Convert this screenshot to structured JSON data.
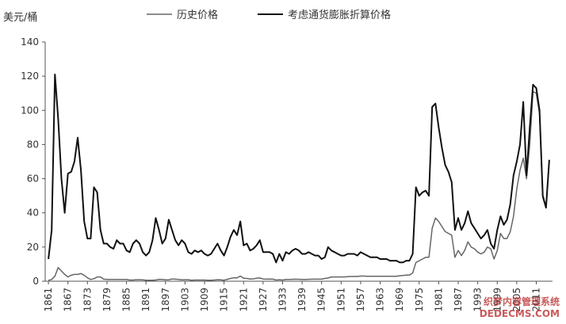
{
  "chart_data": {
    "type": "line",
    "ylabel": "美元/桶",
    "x": [
      1861,
      1862,
      1863,
      1864,
      1865,
      1866,
      1867,
      1868,
      1869,
      1870,
      1871,
      1872,
      1873,
      1874,
      1875,
      1876,
      1877,
      1878,
      1879,
      1880,
      1881,
      1882,
      1883,
      1884,
      1885,
      1886,
      1887,
      1888,
      1889,
      1890,
      1891,
      1892,
      1893,
      1894,
      1895,
      1896,
      1897,
      1898,
      1899,
      1900,
      1901,
      1902,
      1903,
      1904,
      1905,
      1906,
      1907,
      1908,
      1909,
      1910,
      1911,
      1912,
      1913,
      1914,
      1915,
      1916,
      1917,
      1918,
      1919,
      1920,
      1921,
      1922,
      1923,
      1924,
      1925,
      1926,
      1927,
      1928,
      1929,
      1930,
      1931,
      1932,
      1933,
      1934,
      1935,
      1936,
      1937,
      1938,
      1939,
      1940,
      1941,
      1942,
      1943,
      1944,
      1945,
      1946,
      1947,
      1948,
      1949,
      1950,
      1951,
      1952,
      1953,
      1954,
      1955,
      1956,
      1957,
      1958,
      1959,
      1960,
      1961,
      1962,
      1963,
      1964,
      1965,
      1966,
      1967,
      1968,
      1969,
      1970,
      1971,
      1972,
      1973,
      1974,
      1975,
      1976,
      1977,
      1978,
      1979,
      1980,
      1981,
      1982,
      1983,
      1984,
      1985,
      1986,
      1987,
      1988,
      1989,
      1990,
      1991,
      1992,
      1993,
      1994,
      1995,
      1996,
      1997,
      1998,
      1999,
      2000,
      2001,
      2002,
      2003,
      2004,
      2005,
      2006,
      2007,
      2008,
      2009,
      2010,
      2011,
      2012,
      2013,
      2014,
      2015
    ],
    "series": [
      {
        "name": "历史价格",
        "color": "#666666",
        "width": 1.5,
        "values": [
          0.5,
          1,
          3,
          8,
          6,
          4,
          2.5,
          3.5,
          4,
          4,
          4.5,
          3.5,
          2,
          1,
          1.5,
          2.5,
          2.5,
          1.2,
          1,
          1,
          1,
          1,
          1,
          1,
          1,
          0.7,
          0.7,
          0.9,
          0.9,
          0.8,
          0.6,
          0.6,
          0.6,
          0.7,
          1.1,
          1,
          0.8,
          0.9,
          1.3,
          1.2,
          1,
          0.8,
          0.9,
          0.9,
          0.6,
          0.7,
          0.7,
          0.7,
          0.7,
          0.6,
          0.6,
          0.7,
          0.9,
          0.8,
          0.6,
          1.1,
          1.6,
          2,
          2,
          3,
          1.7,
          1.6,
          1.3,
          1.4,
          1.7,
          1.9,
          1.3,
          1.2,
          1.3,
          1.2,
          0.7,
          0.9,
          0.7,
          1,
          1,
          1.1,
          1.2,
          1.1,
          1,
          1,
          1.1,
          1.2,
          1.2,
          1.2,
          1.2,
          1.6,
          1.9,
          2.5,
          2.5,
          2.5,
          2.5,
          2.5,
          2.7,
          2.8,
          2.8,
          2.8,
          3,
          3,
          2.9,
          2.9,
          2.9,
          2.9,
          2.9,
          2.9,
          2.9,
          2.9,
          2.9,
          2.9,
          3.2,
          3.4,
          3.6,
          3.6,
          4.8,
          11,
          12,
          13,
          14,
          14,
          31,
          37,
          35,
          32,
          29,
          28,
          27,
          14,
          18,
          15,
          18,
          23,
          20,
          19,
          17,
          16,
          17,
          20,
          19,
          13,
          18,
          28,
          25,
          25,
          29,
          38,
          54,
          65,
          72,
          60,
          80,
          111,
          110,
          98,
          49,
          43,
          71
        ]
      },
      {
        "name": "考虑通货膨胀折算价格",
        "color": "#111111",
        "width": 2,
        "values": [
          13,
          30,
          121,
          95,
          60,
          40,
          63,
          64,
          70,
          84,
          65,
          35,
          25,
          25,
          55,
          52,
          30,
          22,
          22,
          20,
          19,
          24,
          22,
          22,
          18,
          17,
          22,
          24,
          22,
          17,
          15,
          17,
          24,
          37,
          30,
          22,
          25,
          36,
          30,
          24,
          21,
          24,
          22,
          17,
          16,
          18,
          17,
          18,
          16,
          15,
          16,
          19,
          22,
          18,
          15,
          20,
          26,
          30,
          27,
          35,
          21,
          22,
          18,
          19,
          21,
          24,
          17,
          17,
          17,
          16,
          11,
          16,
          12,
          17,
          16,
          18,
          19,
          18,
          16,
          16,
          17,
          16,
          15,
          15,
          13,
          14,
          20,
          18,
          17,
          16,
          15,
          15,
          16,
          16,
          16,
          15,
          17,
          16,
          15,
          14,
          14,
          14,
          13,
          13,
          13,
          12,
          12,
          12,
          11,
          11,
          12,
          12,
          16,
          55,
          50,
          52,
          53,
          50,
          102,
          104,
          90,
          78,
          68,
          64,
          58,
          30,
          37,
          30,
          34,
          41,
          34,
          31,
          28,
          25,
          27,
          30,
          22,
          19,
          30,
          38,
          33,
          36,
          45,
          62,
          70,
          80,
          105,
          62,
          90,
          115,
          113,
          100,
          50,
          43,
          71
        ]
      }
    ],
    "xlim": [
      1860,
      2016
    ],
    "xticks": [
      1861,
      1867,
      1873,
      1879,
      1885,
      1891,
      1897,
      1903,
      1909,
      1915,
      1921,
      1927,
      1933,
      1939,
      1945,
      1951,
      1957,
      1963,
      1969,
      1975,
      1981,
      1987,
      1993,
      1999,
      2005,
      2011
    ],
    "ylim": [
      0,
      140
    ],
    "yticks": [
      0,
      20,
      40,
      60,
      80,
      100,
      120,
      140
    ],
    "grid": false,
    "legend": "top",
    "watermark": [
      "织梦内容管理系统",
      "DEDECMS.COM"
    ]
  }
}
